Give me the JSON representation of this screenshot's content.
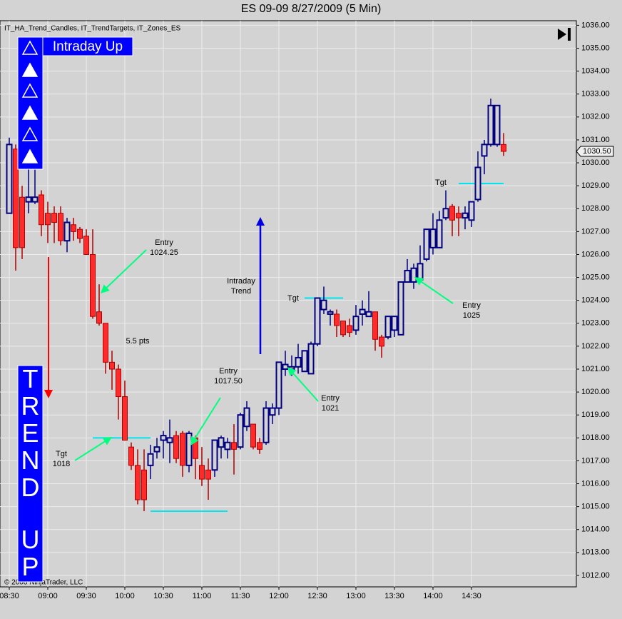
{
  "chart_data": {
    "type": "candlestick",
    "title": "ES 09-09  8/27/2009 (5 Min)",
    "indicators": "IT_HA_Trend_Candles, IT_TrendTargets, IT_Zones_ES",
    "copyright": "© 2008 NinjaTrader, LLC",
    "status": "Intraday Up",
    "trend": [
      "TREND",
      "UP"
    ],
    "categories": [
      "08:30",
      null,
      null,
      null,
      null,
      null,
      "09:00",
      null,
      null,
      null,
      null,
      null,
      "09:30",
      null,
      null,
      null,
      null,
      null,
      "10:00",
      null,
      null,
      null,
      null,
      null,
      "10:30",
      null,
      null,
      null,
      null,
      null,
      "11:00",
      null,
      null,
      null,
      null,
      null,
      "11:30",
      null,
      null,
      null,
      null,
      null,
      "12:00",
      null,
      null,
      null,
      null,
      null,
      "12:30",
      null,
      null,
      null,
      null,
      null,
      "13:00",
      null,
      null,
      null,
      null,
      null,
      "13:30",
      null,
      null,
      null,
      null,
      null,
      "14:00",
      null,
      null,
      null,
      null,
      null,
      "14:30",
      null,
      null,
      null,
      null,
      null
    ],
    "open": [
      1027.8,
      1030.6,
      1028.5,
      1028.3,
      1028.3,
      1028.6,
      1027.8,
      1027.8,
      1027.8,
      1026.6,
      1027.3,
      1027.1,
      1026.8,
      1026.0,
      1023.5,
      1023.0,
      1021.3,
      1021.0,
      1019.8,
      1017.6,
      1016.8,
      1016.6,
      1016.8,
      1017.4,
      1017.9,
      1017.8,
      1018.1,
      1018.2,
      1016.8,
      1018.0,
      1016.8,
      1016.6,
      1016.6,
      1017.6,
      1017.5,
      1017.8,
      1017.6,
      1018.5,
      1018.6,
      1017.8,
      1017.8,
      1019.0,
      1019.3,
      1021.0,
      1021.0,
      1021.1,
      1020.9,
      1020.8,
      1022.1,
      1023.6,
      1023.4,
      1023.4,
      1023.1,
      1022.9,
      1022.7,
      1023.4,
      1023.3,
      1023.5,
      1022.4,
      1022.4,
      1022.7,
      1022.5,
      1024.8,
      1024.8,
      1024.9,
      1025.8,
      1026.3,
      1026.3,
      1027.6,
      1028.1,
      1027.8,
      1027.6,
      1027.5,
      1028.4,
      1030.3,
      1030.8,
      1030.8,
      1030.8
    ],
    "high": [
      1031.1,
      1030.8,
      1029.0,
      1029.9,
      1029.7,
      1028.8,
      1028.3,
      1028.1,
      1028.1,
      1027.6,
      1027.6,
      1027.2,
      1027.1,
      1027.1,
      1024.7,
      1023.0,
      1021.8,
      1021.2,
      1020.5,
      1017.8,
      1017.5,
      1017.5,
      1017.7,
      1018.0,
      1018.3,
      1018.8,
      1018.3,
      1018.3,
      1018.3,
      1018.1,
      1017.6,
      1017.1,
      1017.9,
      1018.1,
      1018.0,
      1018.6,
      1019.1,
      1019.6,
      1018.6,
      1018.0,
      1019.6,
      1019.5,
      1021.3,
      1021.8,
      1021.6,
      1022.1,
      1021.8,
      1022.2,
      1024.1,
      1024.6,
      1023.6,
      1023.6,
      1023.1,
      1023.2,
      1023.8,
      1024.0,
      1024.4,
      1023.5,
      1022.5,
      1023.3,
      1023.3,
      1024.8,
      1025.8,
      1025.6,
      1026.4,
      1027.1,
      1027.8,
      1027.9,
      1028.8,
      1028.2,
      1028.1,
      1028.1,
      1028.3,
      1030.5,
      1031.0,
      1032.8,
      1032.5,
      1031.3
    ],
    "low": [
      1027.8,
      1025.3,
      1025.8,
      1027.8,
      1028.2,
      1026.8,
      1026.5,
      1026.5,
      1026.4,
      1026.1,
      1026.6,
      1026.5,
      1026.0,
      1023.2,
      1022.9,
      1020.8,
      1020.1,
      1018.8,
      1017.9,
      1016.6,
      1015.1,
      1014.8,
      1016.2,
      1017.1,
      1017.1,
      1016.9,
      1016.9,
      1016.3,
      1016.5,
      1016.2,
      1015.9,
      1015.3,
      1016.3,
      1017.1,
      1017.1,
      1016.4,
      1017.5,
      1018.3,
      1017.5,
      1017.3,
      1017.7,
      1018.6,
      1019.0,
      1020.7,
      1020.7,
      1020.8,
      1020.9,
      1020.8,
      1022.0,
      1023.4,
      1022.9,
      1022.4,
      1022.4,
      1022.4,
      1022.5,
      1022.9,
      1023.3,
      1021.8,
      1021.5,
      1022.3,
      1022.4,
      1022.5,
      1024.8,
      1024.5,
      1024.9,
      1025.7,
      1026.0,
      1026.3,
      1027.5,
      1026.8,
      1026.8,
      1027.1,
      1027.2,
      1028.3,
      1029.5,
      1030.7,
      1030.7,
      1030.3
    ],
    "close": [
      1030.8,
      1026.3,
      1026.3,
      1028.5,
      1028.5,
      1027.3,
      1027.3,
      1027.4,
      1026.6,
      1027.4,
      1027.0,
      1026.7,
      1026.0,
      1023.3,
      1023.0,
      1021.3,
      1021.0,
      1019.8,
      1017.9,
      1016.8,
      1015.3,
      1015.3,
      1017.3,
      1017.6,
      1018.1,
      1018.0,
      1017.1,
      1016.8,
      1018.2,
      1017.1,
      1016.2,
      1016.2,
      1017.9,
      1018.0,
      1017.8,
      1017.5,
      1019.0,
      1019.3,
      1017.6,
      1017.5,
      1019.3,
      1019.3,
      1021.3,
      1021.2,
      1021.1,
      1021.5,
      1021.8,
      1022.1,
      1024.1,
      1024.0,
      1023.5,
      1022.9,
      1022.5,
      1022.6,
      1023.3,
      1023.6,
      1023.5,
      1022.3,
      1022.0,
      1023.3,
      1023.3,
      1024.8,
      1025.3,
      1025.4,
      1025.6,
      1027.1,
      1027.1,
      1027.5,
      1028.0,
      1027.5,
      1027.6,
      1027.8,
      1028.3,
      1029.8,
      1030.8,
      1032.5,
      1032.5,
      1030.5
    ],
    "up_color": "#000080",
    "down_color": "#ff2a2a",
    "ylim": [
      1011.5,
      1036.2
    ],
    "yticks": [
      {
        "value": 1012,
        "label": "1012.00"
      },
      {
        "value": 1013,
        "label": "1013.00"
      },
      {
        "value": 1014,
        "label": "1014.00"
      },
      {
        "value": 1015,
        "label": "1015.00"
      },
      {
        "value": 1016,
        "label": "1016.00"
      },
      {
        "value": 1017,
        "label": "1017.00"
      },
      {
        "value": 1018,
        "label": "1018.00"
      },
      {
        "value": 1019,
        "label": "1019.00"
      },
      {
        "value": 1020,
        "label": "1020.00"
      },
      {
        "value": 1021,
        "label": "1021.00"
      },
      {
        "value": 1022,
        "label": "1022.00"
      },
      {
        "value": 1023,
        "label": "1023.00"
      },
      {
        "value": 1024,
        "label": "1024.00"
      },
      {
        "value": 1025,
        "label": "1025.00"
      },
      {
        "value": 1026,
        "label": "1026.00"
      },
      {
        "value": 1027,
        "label": "1027.00"
      },
      {
        "value": 1028,
        "label": "1028.00"
      },
      {
        "value": 1029,
        "label": "1029.00"
      },
      {
        "value": 1030,
        "label": "1030.00"
      },
      {
        "value": 1031,
        "label": "1031.00"
      },
      {
        "value": 1032,
        "label": "1032.00"
      },
      {
        "value": 1033,
        "label": "1033.00"
      },
      {
        "value": 1034,
        "label": "1034.00"
      },
      {
        "value": 1035,
        "label": "1035.00"
      },
      {
        "value": 1036,
        "label": "1036.00"
      }
    ],
    "last_price": {
      "value": 1030.5,
      "label": "1030.50"
    },
    "grid": true,
    "levels": [
      {
        "value": 1018,
        "from": 13,
        "to": 22,
        "color": "#00e5ee"
      },
      {
        "value": 1014.8,
        "from": 22,
        "to": 34,
        "color": "#00e5ee"
      },
      {
        "value": 1024.1,
        "from": 46,
        "to": 52,
        "color": "#00e5ee"
      },
      {
        "value": 1029.1,
        "from": 70,
        "to": 77,
        "color": "#00e5ee"
      }
    ],
    "annotations": [
      {
        "lines": [
          "Entry",
          "1024.25"
        ]
      },
      {
        "lines": [
          "5.5 pts"
        ]
      },
      {
        "lines": [
          "Entry",
          "1017.50"
        ]
      },
      {
        "lines": [
          "Tgt",
          "1018"
        ]
      },
      {
        "lines": [
          "Intraday",
          "Trend"
        ]
      },
      {
        "lines": [
          "Tgt"
        ]
      },
      {
        "lines": [
          "Entry",
          "1021"
        ]
      },
      {
        "lines": [
          "Tgt"
        ]
      },
      {
        "lines": [
          "Entry",
          "1025"
        ]
      }
    ]
  }
}
